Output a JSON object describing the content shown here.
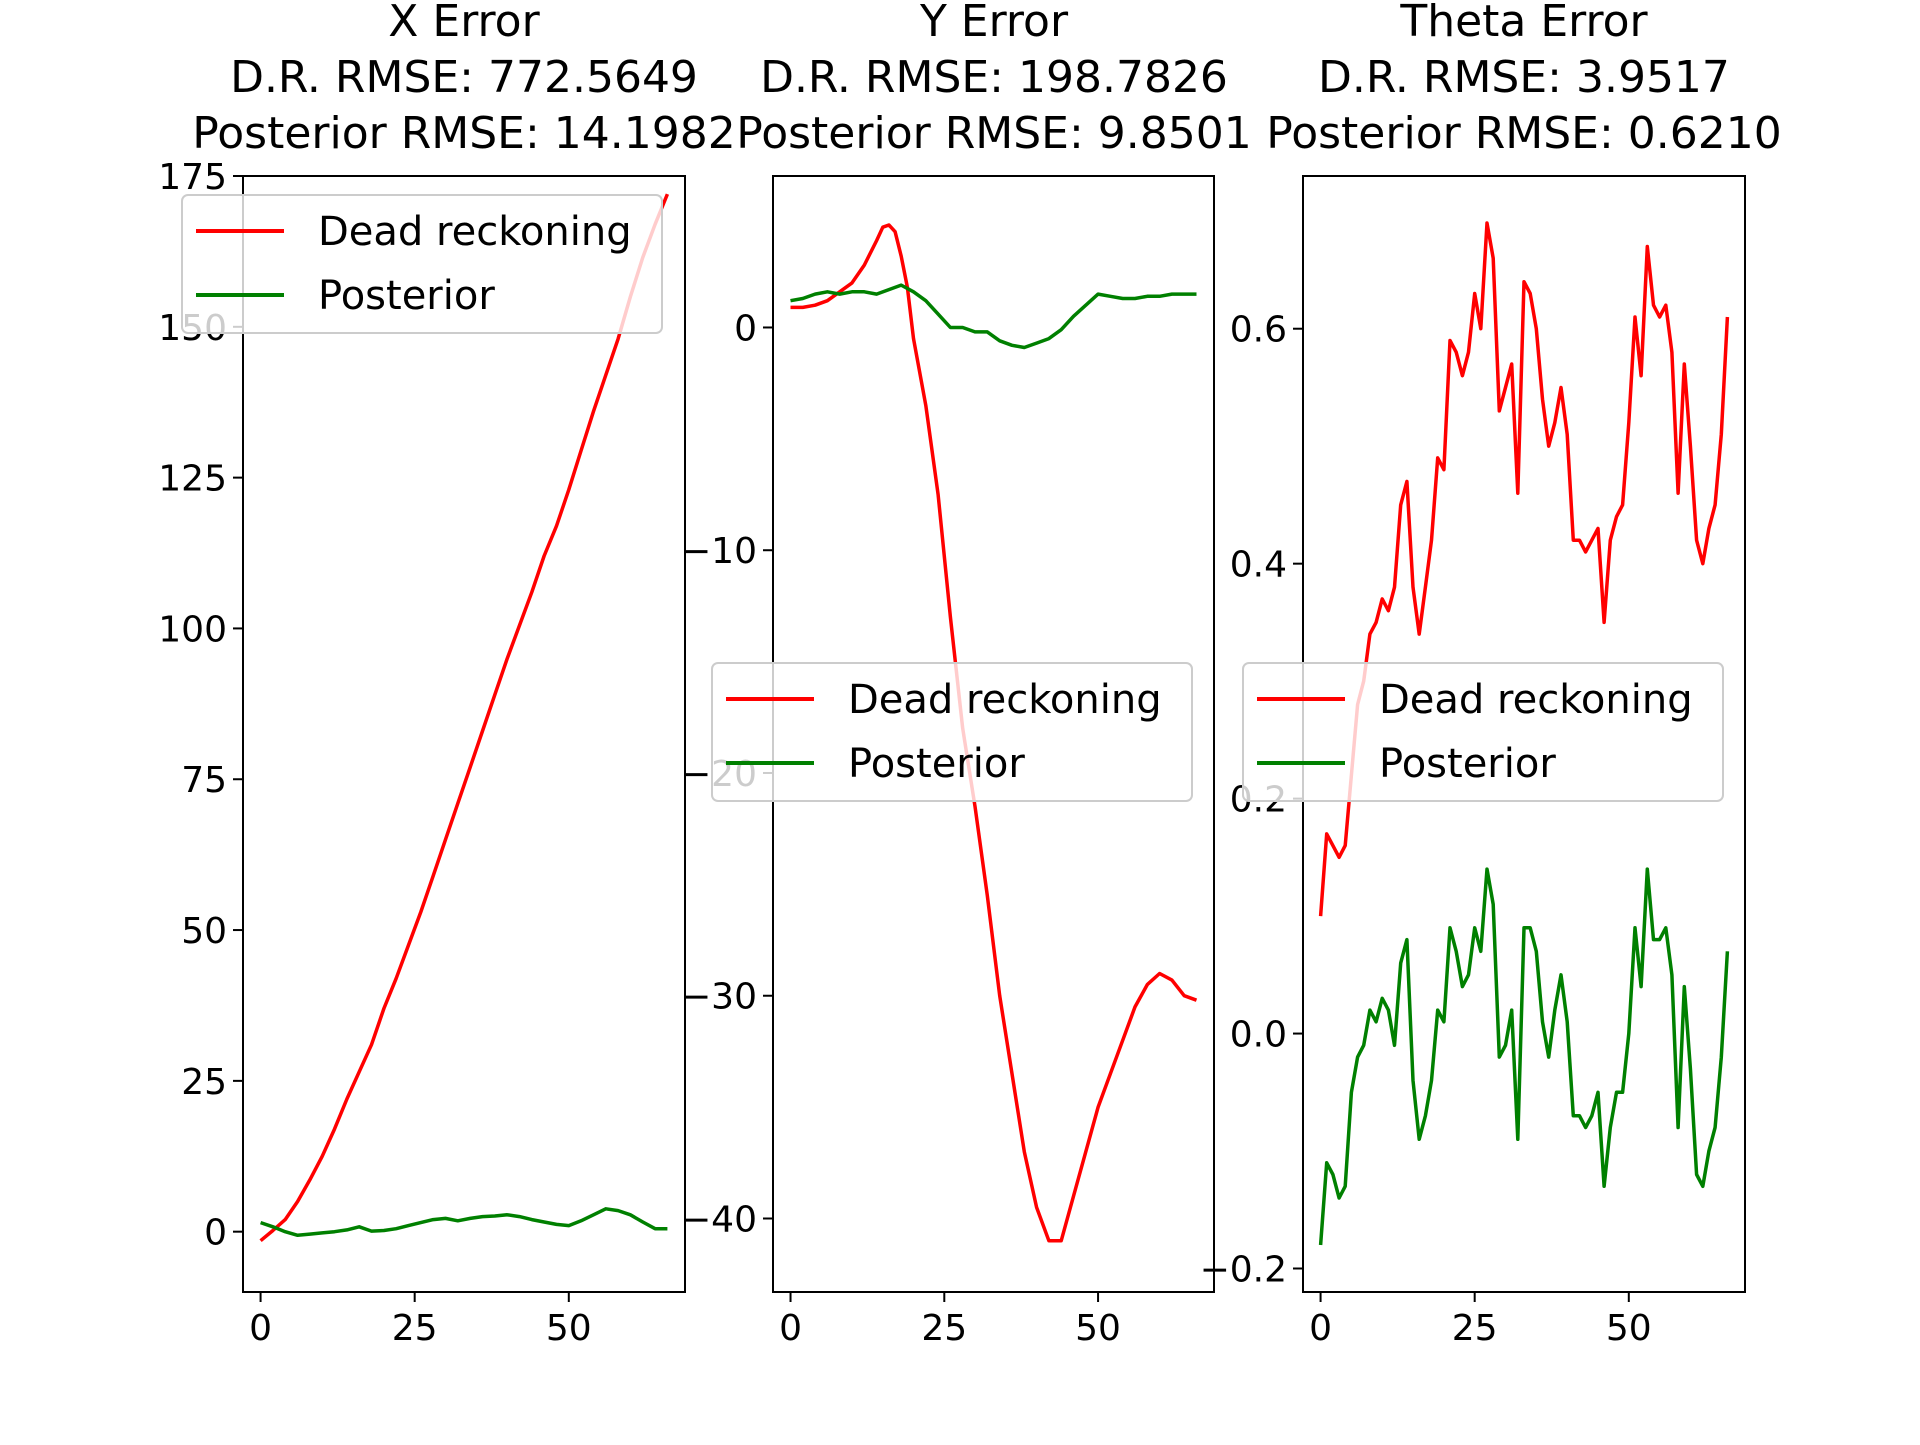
{
  "colors": {
    "dead_reckoning": "#ff0000",
    "posterior": "#008000",
    "axes": "#000000",
    "background": "#ffffff"
  },
  "chart_data": [
    {
      "type": "line",
      "title_lines": [
        "X Error",
        "D.R. RMSE: 772.5649",
        "Posterior RMSE: 14.1982"
      ],
      "xlabel": "",
      "ylabel": "",
      "xlim": [
        -2.85,
        68.85
      ],
      "ylim": [
        -10,
        175
      ],
      "xticks": [
        0,
        25,
        50
      ],
      "xtick_labels": [
        "0",
        "25",
        "50"
      ],
      "yticks": [
        0,
        25,
        50,
        75,
        100,
        125,
        150,
        175
      ],
      "ytick_labels": [
        "0",
        "25",
        "50",
        "75",
        "100",
        "125",
        "150",
        "175"
      ],
      "legend_position": "upper-left",
      "grid": false,
      "series": [
        {
          "name": "Dead reckoning",
          "color": "#ff0000",
          "x": [
            0,
            2,
            4,
            6,
            8,
            10,
            12,
            14,
            16,
            18,
            20,
            22,
            24,
            26,
            28,
            30,
            32,
            34,
            36,
            38,
            40,
            42,
            44,
            46,
            48,
            50,
            52,
            54,
            56,
            58,
            60,
            62,
            64,
            66
          ],
          "y": [
            -1.5,
            0.2,
            2,
            5,
            8.6,
            12.5,
            17,
            22,
            26.5,
            31,
            37,
            42,
            47.5,
            53,
            59,
            65,
            71,
            77,
            83,
            89,
            95,
            100.5,
            106,
            112,
            117,
            123,
            129.5,
            136,
            142,
            148,
            155,
            161.5,
            167,
            172
          ]
        },
        {
          "name": "Posterior",
          "color": "#008000",
          "x": [
            0,
            2,
            4,
            6,
            8,
            10,
            12,
            14,
            16,
            18,
            20,
            22,
            24,
            26,
            28,
            30,
            32,
            34,
            36,
            38,
            40,
            42,
            44,
            46,
            48,
            50,
            52,
            54,
            56,
            58,
            60,
            62,
            64,
            66
          ],
          "y": [
            1.5,
            0.8,
            0,
            -0.6,
            -0.4,
            -0.2,
            0,
            0.3,
            0.8,
            0.1,
            0.2,
            0.5,
            1,
            1.5,
            2,
            2.2,
            1.8,
            2.2,
            2.5,
            2.6,
            2.8,
            2.5,
            2,
            1.6,
            1.2,
            1,
            1.8,
            2.8,
            3.8,
            3.5,
            2.8,
            1.6,
            0.5,
            0.5
          ]
        }
      ]
    },
    {
      "type": "line",
      "title_lines": [
        "Y Error",
        "D.R. RMSE: 198.7826",
        "Posterior RMSE: 9.8501"
      ],
      "xlabel": "",
      "ylabel": "",
      "xlim": [
        -2.85,
        68.85
      ],
      "ylim": [
        -43.3,
        6.8
      ],
      "xticks": [
        0,
        25,
        50
      ],
      "xtick_labels": [
        "0",
        "25",
        "50"
      ],
      "yticks": [
        0,
        -10,
        -20,
        -30,
        -40
      ],
      "ytick_labels": [
        "0",
        "−10",
        "−20",
        "−30",
        "−40"
      ],
      "legend_position": "center-left",
      "grid": false,
      "series": [
        {
          "name": "Dead reckoning",
          "color": "#ff0000",
          "x": [
            0,
            2,
            4,
            6,
            8,
            10,
            12,
            14,
            15,
            16,
            17,
            18,
            19,
            20,
            22,
            24,
            26,
            28,
            30,
            32,
            34,
            36,
            38,
            40,
            42,
            44,
            46,
            48,
            50,
            52,
            54,
            56,
            58,
            60,
            62,
            64,
            66
          ],
          "y": [
            0.9,
            0.9,
            1,
            1.2,
            1.6,
            2,
            2.8,
            3.9,
            4.5,
            4.6,
            4.3,
            3.2,
            1.8,
            -0.5,
            -3.5,
            -7.5,
            -13,
            -18,
            -21.5,
            -25.5,
            -30,
            -33.5,
            -37,
            -39.5,
            -41,
            -41,
            -39,
            -37,
            -35,
            -33.5,
            -32,
            -30.5,
            -29.5,
            -29,
            -29.3,
            -30,
            -30.2
          ]
        },
        {
          "name": "Posterior",
          "color": "#008000",
          "x": [
            0,
            2,
            4,
            6,
            8,
            10,
            12,
            14,
            16,
            18,
            20,
            22,
            24,
            26,
            28,
            30,
            32,
            34,
            36,
            38,
            40,
            42,
            44,
            46,
            48,
            50,
            52,
            54,
            56,
            58,
            60,
            62,
            64,
            66
          ],
          "y": [
            1.2,
            1.3,
            1.5,
            1.6,
            1.5,
            1.6,
            1.6,
            1.5,
            1.7,
            1.9,
            1.6,
            1.2,
            0.6,
            0,
            0,
            -0.2,
            -0.2,
            -0.6,
            -0.8,
            -0.9,
            -0.7,
            -0.5,
            -0.1,
            0.5,
            1,
            1.5,
            1.4,
            1.3,
            1.3,
            1.4,
            1.4,
            1.5,
            1.5,
            1.5
          ]
        }
      ]
    },
    {
      "type": "line",
      "title_lines": [
        "Theta Error",
        "D.R. RMSE: 3.9517",
        "Posterior RMSE: 0.6210"
      ],
      "xlabel": "",
      "ylabel": "",
      "xlim": [
        -2.85,
        68.85
      ],
      "ylim": [
        -0.22,
        0.73
      ],
      "xticks": [
        0,
        25,
        50
      ],
      "xtick_labels": [
        "0",
        "25",
        "50"
      ],
      "yticks": [
        -0.2,
        0.0,
        0.2,
        0.4,
        0.6
      ],
      "ytick_labels": [
        "−0.2",
        "0.0",
        "0.2",
        "0.4",
        "0.6"
      ],
      "legend_position": "center-left",
      "grid": false,
      "series": [
        {
          "name": "Dead reckoning",
          "color": "#ff0000",
          "x": [
            0,
            1,
            2,
            3,
            4,
            5,
            6,
            7,
            8,
            9,
            10,
            11,
            12,
            13,
            14,
            15,
            16,
            17,
            18,
            19,
            20,
            21,
            22,
            23,
            24,
            25,
            26,
            27,
            28,
            29,
            30,
            31,
            32,
            33,
            34,
            35,
            36,
            37,
            38,
            39,
            40,
            41,
            42,
            43,
            44,
            45,
            46,
            47,
            48,
            49,
            50,
            51,
            52,
            53,
            54,
            55,
            56,
            57,
            58,
            59,
            60,
            61,
            62,
            63,
            64,
            65,
            66
          ],
          "y": [
            0.1,
            0.17,
            0.16,
            0.15,
            0.16,
            0.22,
            0.28,
            0.3,
            0.34,
            0.35,
            0.37,
            0.36,
            0.38,
            0.45,
            0.47,
            0.38,
            0.34,
            0.38,
            0.42,
            0.49,
            0.48,
            0.59,
            0.58,
            0.56,
            0.58,
            0.63,
            0.6,
            0.69,
            0.66,
            0.53,
            0.55,
            0.57,
            0.46,
            0.64,
            0.63,
            0.6,
            0.54,
            0.5,
            0.52,
            0.55,
            0.51,
            0.42,
            0.42,
            0.41,
            0.42,
            0.43,
            0.35,
            0.42,
            0.44,
            0.45,
            0.52,
            0.61,
            0.56,
            0.67,
            0.62,
            0.61,
            0.62,
            0.58,
            0.46,
            0.57,
            0.5,
            0.42,
            0.4,
            0.43,
            0.45,
            0.51,
            0.61
          ]
        },
        {
          "name": "Posterior",
          "color": "#008000",
          "x": [
            0,
            1,
            2,
            3,
            4,
            5,
            6,
            7,
            8,
            9,
            10,
            11,
            12,
            13,
            14,
            15,
            16,
            17,
            18,
            19,
            20,
            21,
            22,
            23,
            24,
            25,
            26,
            27,
            28,
            29,
            30,
            31,
            32,
            33,
            34,
            35,
            36,
            37,
            38,
            39,
            40,
            41,
            42,
            43,
            44,
            45,
            46,
            47,
            48,
            49,
            50,
            51,
            52,
            53,
            54,
            55,
            56,
            57,
            58,
            59,
            60,
            61,
            62,
            63,
            64,
            65,
            66
          ],
          "y": [
            -0.18,
            -0.11,
            -0.12,
            -0.14,
            -0.13,
            -0.05,
            -0.02,
            -0.01,
            0.02,
            0.01,
            0.03,
            0.02,
            -0.01,
            0.06,
            0.08,
            -0.04,
            -0.09,
            -0.07,
            -0.04,
            0.02,
            0.01,
            0.09,
            0.07,
            0.04,
            0.05,
            0.09,
            0.07,
            0.14,
            0.11,
            -0.02,
            -0.01,
            0.02,
            -0.09,
            0.09,
            0.09,
            0.07,
            0.01,
            -0.02,
            0.02,
            0.05,
            0.01,
            -0.07,
            -0.07,
            -0.08,
            -0.07,
            -0.05,
            -0.13,
            -0.08,
            -0.05,
            -0.05,
            0.0,
            0.09,
            0.04,
            0.14,
            0.08,
            0.08,
            0.09,
            0.05,
            -0.08,
            0.04,
            -0.03,
            -0.12,
            -0.13,
            -0.1,
            -0.08,
            -0.02,
            0.07
          ]
        }
      ]
    }
  ]
}
